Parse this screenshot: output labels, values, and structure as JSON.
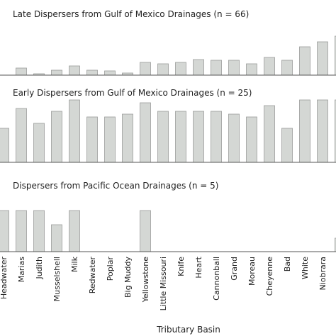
{
  "chart_data": [
    {
      "type": "bar",
      "title": "Late Dispersers from Gulf of Mexico Drainages (n = 66)",
      "color": "#d4d7d4",
      "values": [
        0,
        10,
        2,
        7,
        13,
        7,
        6,
        3,
        18,
        16,
        18,
        22,
        21,
        21,
        16,
        25,
        21,
        40,
        47,
        55
      ],
      "ylim": [
        0,
        66
      ]
    },
    {
      "type": "bar",
      "title": "Early Dispersers from Gulf of Mexico Drainages (n = 25)",
      "color": "#d4d7d4",
      "values": [
        48,
        76,
        55,
        72,
        88,
        64,
        64,
        68,
        84,
        72,
        72,
        72,
        72,
        68,
        64,
        80,
        48,
        88,
        88,
        88
      ],
      "ylim": [
        0,
        90
      ]
    },
    {
      "type": "bar",
      "title": "Dispersers from Pacific Ocean Drainages (n = 5)",
      "color": "#d4d7d4",
      "values": [
        58,
        58,
        58,
        38,
        58,
        0,
        0,
        0,
        58,
        0,
        0,
        0,
        0,
        0,
        0,
        0,
        0,
        0,
        0,
        19
      ],
      "ylim": [
        0,
        60
      ],
      "categories": [
        "Headwater",
        "Marias",
        "Judith",
        "Musselshell",
        "Milk",
        "Redwater",
        "Poplar",
        "Big Muddy",
        "Yellowstone",
        "Little Missouri",
        "Knife",
        "Heart",
        "Cannonball",
        "Grand",
        "Moreau",
        "Cheyenne",
        "Bad",
        "White",
        "Niobrara",
        null
      ],
      "x_label": "Tributary Basin"
    }
  ]
}
